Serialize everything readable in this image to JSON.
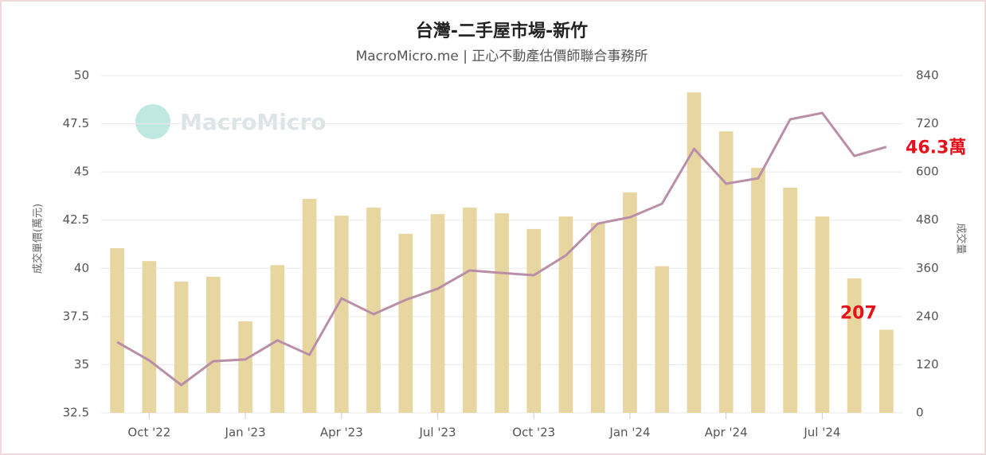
{
  "chart_data": {
    "type": "combo",
    "title": "台灣-二手屋市場-新竹",
    "subtitle": "MacroMicro.me | 正心不動產估價師聯合事務所",
    "watermark": "MacroMicro",
    "ylabel": "成交單價(萬元)",
    "y2label": "成交量",
    "categories": [
      null,
      "Oct '22",
      null,
      null,
      "Jan '23",
      null,
      null,
      "Apr '23",
      null,
      null,
      "Jul '23",
      null,
      null,
      "Oct '23",
      null,
      null,
      "Jan '24",
      null,
      null,
      "Apr '24",
      null,
      null,
      "Jul '24",
      null,
      null
    ],
    "series": [
      {
        "name": "成交量",
        "type": "bar",
        "axis": "y2",
        "color": "#e8d6a1",
        "values": [
          410,
          378,
          327,
          339,
          228,
          368,
          533,
          491,
          511,
          446,
          495,
          511,
          497,
          458,
          489,
          473,
          549,
          365,
          798,
          701,
          610,
          561,
          489,
          335,
          207
        ]
      },
      {
        "name": "成交單價",
        "type": "line",
        "axis": "y",
        "color": "#b98fa8",
        "values": [
          36.17,
          35.22,
          33.94,
          35.18,
          35.27,
          36.26,
          35.51,
          38.44,
          37.62,
          38.36,
          38.94,
          39.89,
          39.76,
          39.64,
          40.67,
          42.32,
          42.65,
          43.35,
          46.2,
          44.39,
          44.67,
          47.73,
          48.06,
          45.83,
          46.3
        ],
        "value_labels": [
          null,
          null,
          null,
          null,
          null,
          null,
          null,
          null,
          null,
          null,
          null,
          null,
          null,
          null,
          null,
          null,
          null,
          null,
          null,
          null,
          null,
          null,
          null,
          null,
          "46.3萬"
        ]
      }
    ],
    "ylim": [
      32.5,
      50
    ],
    "yticks": [
      32.5,
      35,
      37.5,
      40,
      42.5,
      45,
      47.5,
      50
    ],
    "y2lim": [
      0,
      840
    ],
    "y2ticks": [
      0,
      120,
      240,
      360,
      480,
      600,
      720,
      840
    ],
    "grid": true,
    "label_color": "#e8101a"
  }
}
